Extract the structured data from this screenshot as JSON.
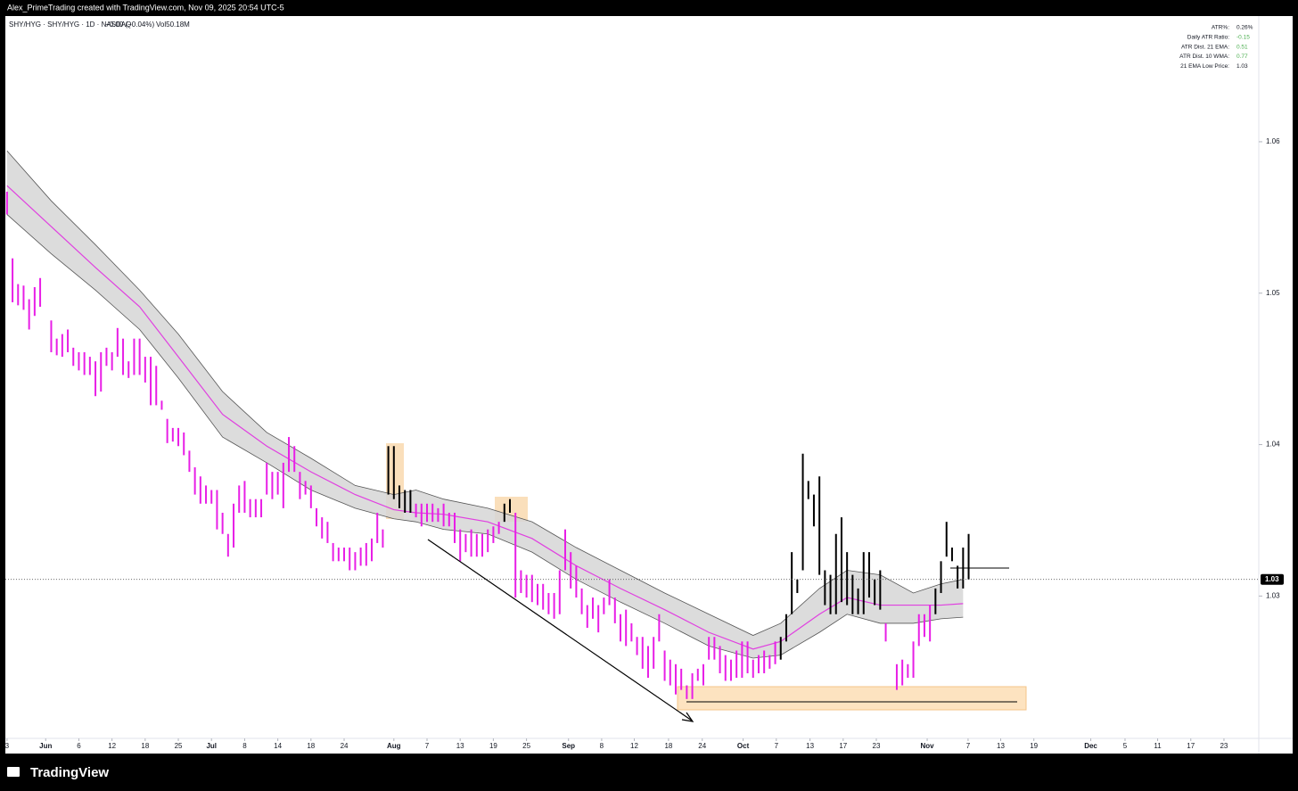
{
  "header": "Alex_PrimeTrading created with TradingView.com, Nov 09, 2025 20:54 UTC-5",
  "brand": "TradingView",
  "indicators": [
    {
      "label": "ATR%:",
      "value": "0.26%",
      "color": "#131722"
    },
    {
      "label": "Daily ATR Ratio:",
      "value": "-0.15",
      "color": "#4caf50"
    },
    {
      "label": "ATR Dist. 21 EMA:",
      "value": "0.51",
      "color": "#4caf50"
    },
    {
      "label": "ATR Dist. 10 WMA:",
      "value": "0.77",
      "color": "#4caf50"
    },
    {
      "label": "21 EMA Low Price:",
      "value": "1.03",
      "color": "#131722"
    }
  ],
  "chart_data": {
    "type": "ohlc",
    "title": "SHY/HYG · SHY/HYG · 1D · NASDAQ",
    "change": "−0.00 (−0.04%)",
    "volume": "Vol50.18M",
    "xlim": [
      -0.3,
      226.5
    ],
    "ylim": [
      1.0206,
      1.0683
    ],
    "yticks": [
      1.06,
      1.05,
      1.04,
      1.03
    ],
    "xticks": [
      {
        "value": 0,
        "label": "3"
      },
      {
        "value": 7,
        "label": "Jun"
      },
      {
        "value": 13,
        "label": "6"
      },
      {
        "value": 19,
        "label": "12"
      },
      {
        "value": 25,
        "label": "18"
      },
      {
        "value": 31,
        "label": "25"
      },
      {
        "value": 37,
        "label": "Jul"
      },
      {
        "value": 43,
        "label": "8"
      },
      {
        "value": 49,
        "label": "14"
      },
      {
        "value": 55,
        "label": "18"
      },
      {
        "value": 61,
        "label": "24"
      },
      {
        "value": 70,
        "label": "Aug"
      },
      {
        "value": 76,
        "label": "7"
      },
      {
        "value": 82,
        "label": "13"
      },
      {
        "value": 88,
        "label": "19"
      },
      {
        "value": 94,
        "label": "25"
      },
      {
        "value": 101.6,
        "label": "Sep"
      },
      {
        "value": 107.6,
        "label": "8"
      },
      {
        "value": 113.5,
        "label": "12"
      },
      {
        "value": 119.7,
        "label": "18"
      },
      {
        "value": 125.8,
        "label": "24"
      },
      {
        "value": 133.2,
        "label": "Oct"
      },
      {
        "value": 139.2,
        "label": "7"
      },
      {
        "value": 145.3,
        "label": "13"
      },
      {
        "value": 151.3,
        "label": "17"
      },
      {
        "value": 157.3,
        "label": "23"
      },
      {
        "value": 166.5,
        "label": "Nov"
      },
      {
        "value": 173.9,
        "label": "7"
      },
      {
        "value": 179.8,
        "label": "13"
      },
      {
        "value": 185.8,
        "label": "19"
      },
      {
        "value": 196.1,
        "label": "Dec"
      },
      {
        "value": 202.3,
        "label": "5"
      },
      {
        "value": 208.2,
        "label": "11"
      },
      {
        "value": 214.2,
        "label": "17"
      },
      {
        "value": 220.2,
        "label": "23"
      }
    ],
    "last": {
      "value": 1.0311,
      "label": "1.03"
    },
    "series": [
      {
        "color": "#e81ee6",
        "x": [
          0,
          1,
          2,
          3,
          4,
          5,
          6,
          8,
          9,
          10,
          11,
          12,
          13,
          14,
          15,
          16,
          17,
          18,
          19,
          20,
          21,
          22,
          23,
          24,
          25,
          26,
          27,
          28,
          29,
          30,
          31,
          32,
          33,
          34,
          35,
          36,
          37,
          38,
          39,
          40,
          41,
          42,
          43,
          44,
          45,
          46,
          47,
          48,
          49,
          50,
          51,
          52,
          53,
          54,
          55,
          56,
          57,
          58,
          59,
          60,
          61,
          62,
          63,
          64,
          65,
          66,
          67,
          68,
          74,
          75,
          76,
          77,
          78,
          79,
          80,
          81,
          82,
          83,
          84,
          85,
          86,
          87,
          88,
          89,
          92,
          93,
          94,
          95,
          96,
          97,
          98,
          99,
          100,
          101,
          102,
          103,
          104,
          105,
          106,
          107,
          108,
          109,
          110,
          111,
          112,
          113,
          114,
          115,
          116,
          117,
          118,
          119,
          120,
          121,
          122,
          123,
          124,
          125,
          126,
          127,
          128,
          129,
          130,
          131,
          132,
          133,
          134,
          135,
          136,
          137,
          138,
          139,
          159,
          161,
          162,
          163,
          164,
          165,
          166,
          167
        ],
        "high": [
          1.0567,
          1.0523,
          1.0506,
          1.0505,
          1.0496,
          1.0504,
          1.051,
          1.0482,
          1.047,
          1.0473,
          1.0476,
          1.0464,
          1.0461,
          1.0461,
          1.0458,
          1.0455,
          1.0461,
          1.0464,
          1.0461,
          1.0477,
          1.047,
          1.0455,
          1.047,
          1.047,
          1.0458,
          1.0458,
          1.0452,
          1.0429,
          1.0417,
          1.0411,
          1.0411,
          1.0408,
          1.0396,
          1.0385,
          1.0379,
          1.0373,
          1.037,
          1.037,
          1.0355,
          1.0341,
          1.0361,
          1.0373,
          1.0376,
          1.0364,
          1.0364,
          1.0364,
          1.0388,
          1.0382,
          1.0382,
          1.0388,
          1.0405,
          1.0399,
          1.0382,
          1.0376,
          1.0373,
          1.0358,
          1.0352,
          1.0349,
          1.0335,
          1.0332,
          1.0332,
          1.0332,
          1.0329,
          1.0332,
          1.0335,
          1.0338,
          1.0355,
          1.0344,
          1.0361,
          1.0361,
          1.0361,
          1.0361,
          1.0358,
          1.0361,
          1.0355,
          1.0355,
          1.0344,
          1.0341,
          1.0344,
          1.0341,
          1.0341,
          1.0344,
          1.0346,
          1.0349,
          1.0355,
          1.0317,
          1.0314,
          1.0314,
          1.0308,
          1.0308,
          1.0302,
          1.0302,
          1.0317,
          1.0344,
          1.0329,
          1.032,
          1.0305,
          1.0294,
          1.0299,
          1.0294,
          1.0299,
          1.0311,
          1.0299,
          1.0288,
          1.0291,
          1.0282,
          1.0273,
          1.0273,
          1.0267,
          1.0273,
          1.0288,
          1.0264,
          1.0258,
          1.0255,
          1.0252,
          1.0241,
          1.0249,
          1.0252,
          1.0255,
          1.0273,
          1.0273,
          1.0267,
          1.0261,
          1.0258,
          1.0264,
          1.027,
          1.027,
          1.0258,
          1.0261,
          1.0264,
          1.0261,
          1.027,
          1.0282,
          1.0255,
          1.0258,
          1.0255,
          1.027,
          1.0288,
          1.0288,
          1.0294
        ],
        "low": [
          1.0552,
          1.0494,
          1.0492,
          1.0489,
          1.0476,
          1.0485,
          1.0491,
          1.0461,
          1.0459,
          1.0458,
          1.0461,
          1.0452,
          1.0449,
          1.0446,
          1.0446,
          1.0432,
          1.0435,
          1.0452,
          1.0449,
          1.0458,
          1.0446,
          1.0444,
          1.0446,
          1.0446,
          1.0441,
          1.0426,
          1.0426,
          1.0423,
          1.0401,
          1.0402,
          1.0399,
          1.0393,
          1.0382,
          1.0367,
          1.0361,
          1.0361,
          1.0361,
          1.0344,
          1.0341,
          1.0326,
          1.0332,
          1.0355,
          1.0355,
          1.0352,
          1.0352,
          1.0352,
          1.0367,
          1.0364,
          1.0367,
          1.0358,
          1.0382,
          1.0382,
          1.0364,
          1.0367,
          1.0358,
          1.0346,
          1.0338,
          1.0335,
          1.0323,
          1.0323,
          1.0323,
          1.0317,
          1.0317,
          1.032,
          1.032,
          1.0323,
          1.0335,
          1.0332,
          1.0352,
          1.0346,
          1.0349,
          1.0349,
          1.0349,
          1.0346,
          1.0346,
          1.0335,
          1.0323,
          1.0329,
          1.0326,
          1.0326,
          1.0326,
          1.0329,
          1.0335,
          1.0341,
          1.0299,
          1.0302,
          1.0299,
          1.0296,
          1.0294,
          1.0291,
          1.0288,
          1.0285,
          1.0288,
          1.0317,
          1.0305,
          1.0299,
          1.0288,
          1.0279,
          1.0285,
          1.0276,
          1.0288,
          1.0294,
          1.0282,
          1.027,
          1.0267,
          1.027,
          1.0261,
          1.0252,
          1.0246,
          1.0252,
          1.027,
          1.0244,
          1.0241,
          1.0235,
          1.0238,
          1.0232,
          1.0232,
          1.0244,
          1.0241,
          1.0258,
          1.0258,
          1.0249,
          1.0244,
          1.0244,
          1.0246,
          1.0246,
          1.0249,
          1.0246,
          1.0249,
          1.0249,
          1.0252,
          1.0255,
          1.027,
          1.0238,
          1.0241,
          1.0246,
          1.0246,
          1.0267,
          1.0273,
          1.027
        ]
      },
      {
        "color": "#000000",
        "x": [
          69,
          70,
          71,
          72,
          73,
          90,
          91,
          140,
          141,
          142,
          143,
          144,
          145,
          146,
          147,
          148,
          149,
          150,
          151,
          152,
          153,
          154,
          155,
          156,
          157,
          158,
          168,
          169,
          170,
          171,
          172,
          173,
          174
        ],
        "high": [
          1.0399,
          1.0399,
          1.0373,
          1.037,
          1.037,
          1.0361,
          1.0364,
          1.0273,
          1.0288,
          1.0329,
          1.0311,
          1.0394,
          1.0376,
          1.0367,
          1.0379,
          1.0317,
          1.0314,
          1.0341,
          1.0352,
          1.0329,
          1.0314,
          1.0305,
          1.0329,
          1.0329,
          1.0311,
          1.0317,
          1.0305,
          1.0323,
          1.0349,
          1.0332,
          1.032,
          1.0332,
          1.0341
        ],
        "low": [
          1.0367,
          1.0364,
          1.0358,
          1.0355,
          1.0355,
          1.0349,
          1.0355,
          1.0258,
          1.027,
          1.0288,
          1.0302,
          1.0317,
          1.0364,
          1.0346,
          1.0314,
          1.0294,
          1.0288,
          1.0288,
          1.0296,
          1.0294,
          1.0288,
          1.0288,
          1.0288,
          1.0299,
          1.0294,
          1.0291,
          1.0288,
          1.0302,
          1.0326,
          1.0323,
          1.0305,
          1.0305,
          1.0311
        ]
      }
    ],
    "ema": {
      "color": "#e040e0",
      "x": [
        0,
        8,
        16,
        24,
        31,
        39,
        47,
        55,
        63,
        70,
        74,
        79,
        87,
        95,
        103,
        111,
        119,
        127,
        135,
        140,
        147,
        152,
        158,
        164,
        169,
        173
      ],
      "values": [
        1.0571,
        1.0544,
        1.0517,
        1.0491,
        1.0458,
        1.042,
        1.0399,
        1.0382,
        1.0367,
        1.0357,
        1.0355,
        1.0354,
        1.0349,
        1.0338,
        1.032,
        1.0305,
        1.0291,
        1.0276,
        1.0265,
        1.027,
        1.0288,
        1.0299,
        1.0294,
        1.0294,
        1.0294,
        1.0295
      ]
    },
    "band": {
      "color": "#555555",
      "fill": "#d6d6d6",
      "x": [
        0,
        8,
        16,
        24,
        31,
        39,
        47,
        55,
        63,
        70,
        74,
        79,
        87,
        95,
        103,
        111,
        119,
        127,
        135,
        140,
        147,
        152,
        158,
        164,
        169,
        173
      ],
      "upper": [
        1.0594,
        1.0561,
        1.0532,
        1.0502,
        1.0473,
        1.0435,
        1.0408,
        1.0391,
        1.0373,
        1.0367,
        1.037,
        1.0364,
        1.0358,
        1.0349,
        1.0332,
        1.0317,
        1.0302,
        1.0288,
        1.0274,
        1.0282,
        1.0305,
        1.0317,
        1.0314,
        1.0302,
        1.0308,
        1.0311
      ],
      "lower": [
        1.0552,
        1.0526,
        1.0502,
        1.0476,
        1.0444,
        1.0405,
        1.0388,
        1.037,
        1.0358,
        1.0351,
        1.0349,
        1.0344,
        1.0341,
        1.0329,
        1.0311,
        1.0296,
        1.0282,
        1.0267,
        1.0259,
        1.0261,
        1.0276,
        1.0288,
        1.0282,
        1.0282,
        1.0285,
        1.0286
      ]
    }
  }
}
